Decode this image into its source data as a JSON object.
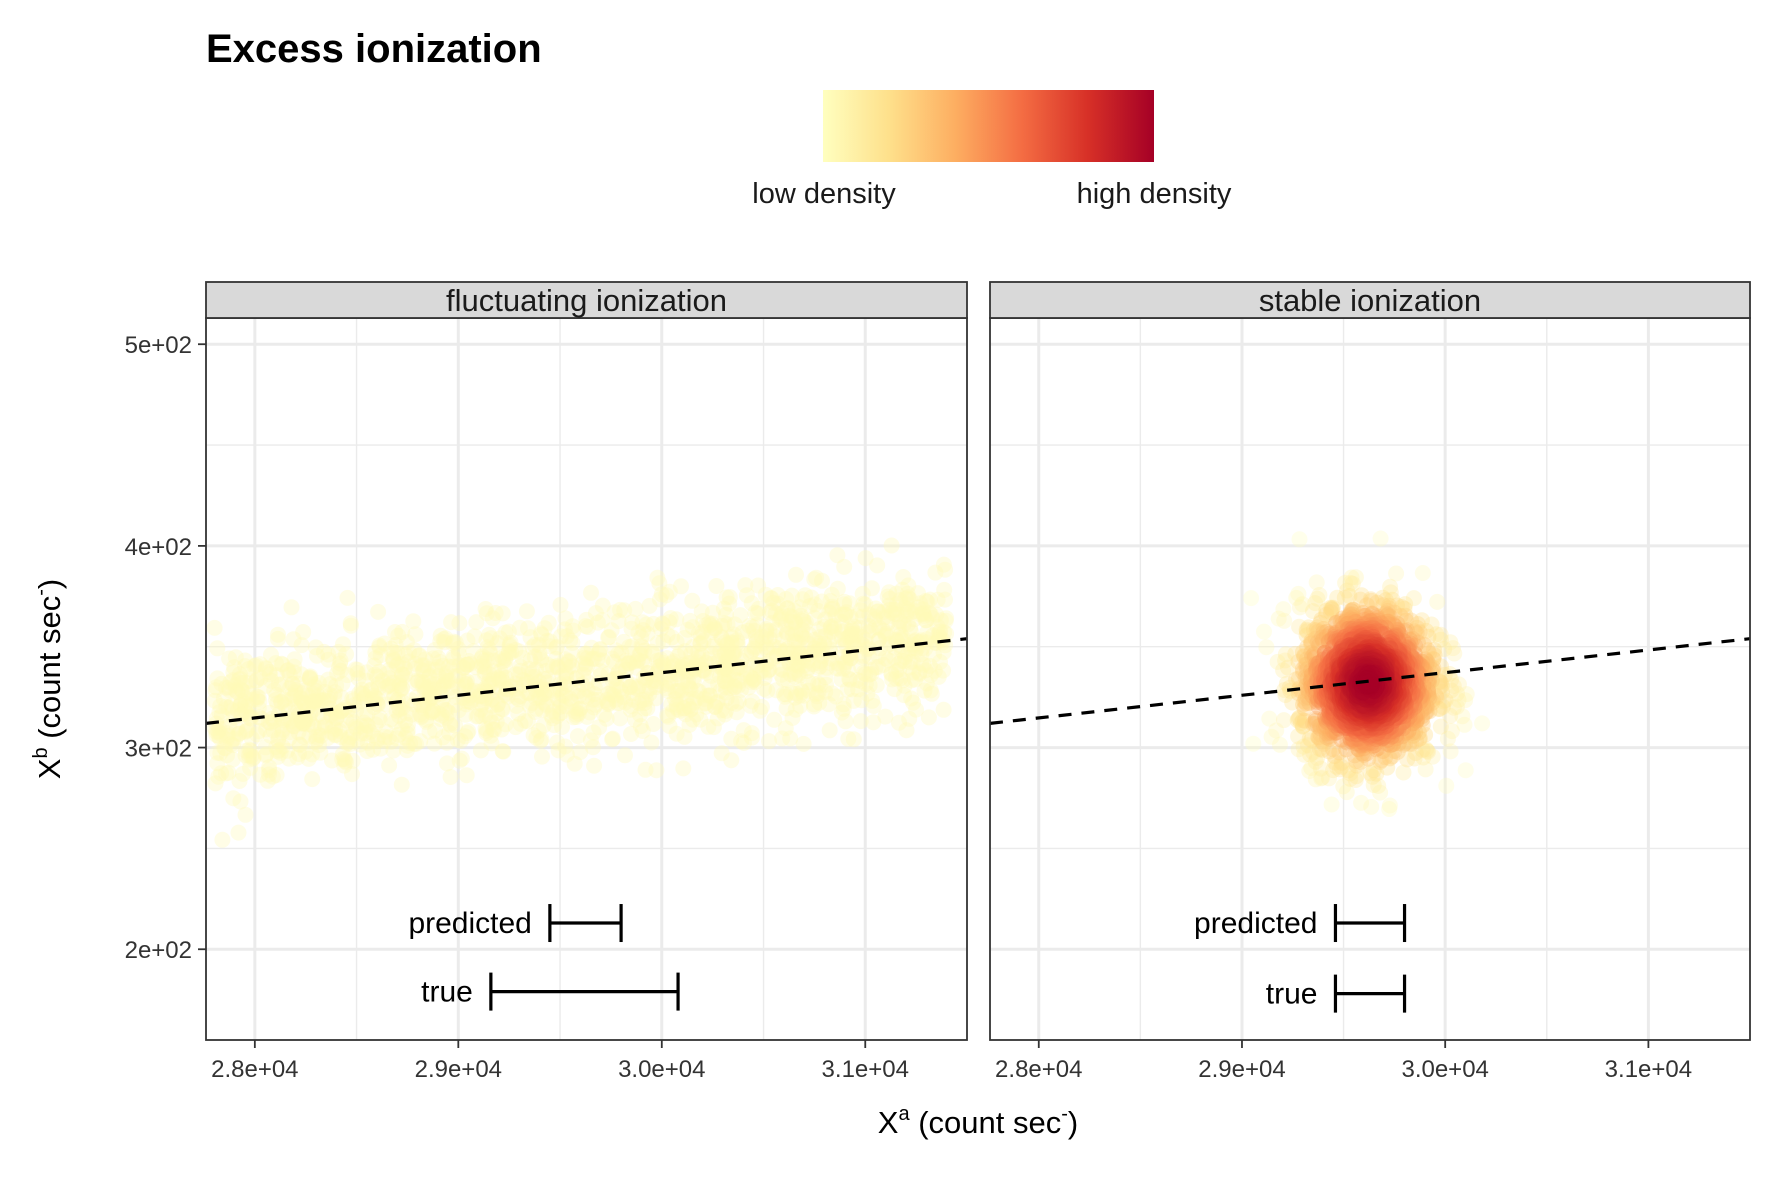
{
  "chart_data": {
    "type": "scatter",
    "title": "Excess ionization",
    "legend": {
      "position": "top",
      "gradient": [
        "#ffffbf",
        "#fee08b",
        "#fdae61",
        "#f46d43",
        "#d73027",
        "#a50026"
      ],
      "low_label": "low density",
      "high_label": "high density"
    },
    "xlabel": {
      "base": "X",
      "sup": "a",
      "unit": "(count sec",
      "unit_sup": "-",
      "close": ")"
    },
    "ylabel": {
      "base": "X",
      "sup": "b",
      "unit": "(count sec",
      "unit_sup": "-",
      "close": ")"
    },
    "xlim": [
      27760,
      31500
    ],
    "ylim": [
      155,
      513
    ],
    "xticks": [
      28000,
      29000,
      30000,
      31000
    ],
    "xtick_labels": [
      "2.8e+04",
      "2.9e+04",
      "3.0e+04",
      "3.1e+04"
    ],
    "yticks": [
      200,
      300,
      400,
      500
    ],
    "ytick_labels": [
      "2e+02",
      "3e+02",
      "4e+02",
      "5e+02"
    ],
    "grid": true,
    "panels": [
      {
        "strip": "fluctuating ionization",
        "points": {
          "count": 1800,
          "x_min": 27800,
          "x_max": 31400,
          "y_center_at_x_min": 313,
          "slope_per_1000": 11.5,
          "y_sd": 17,
          "density": "low"
        },
        "fit_line": {
          "x": [
            27760,
            31500
          ],
          "y": [
            312,
            354
          ]
        },
        "intervals": [
          {
            "label": "predicted",
            "x_low": 29450,
            "x_high": 29800,
            "y": 213
          },
          {
            "label": "true",
            "x_low": 29160,
            "x_high": 30080,
            "y": 179
          }
        ]
      },
      {
        "strip": "stable ionization",
        "points": {
          "count": 1500,
          "x_center": 29620,
          "x_sd": 170,
          "y_center": 332,
          "y_sd": 20,
          "density": "high"
        },
        "fit_line": {
          "x": [
            27760,
            31500
          ],
          "y": [
            312,
            354
          ]
        },
        "intervals": [
          {
            "label": "predicted",
            "x_low": 29460,
            "x_high": 29800,
            "y": 213
          },
          {
            "label": "true",
            "x_low": 29460,
            "x_high": 29800,
            "y": 178
          }
        ]
      }
    ]
  }
}
